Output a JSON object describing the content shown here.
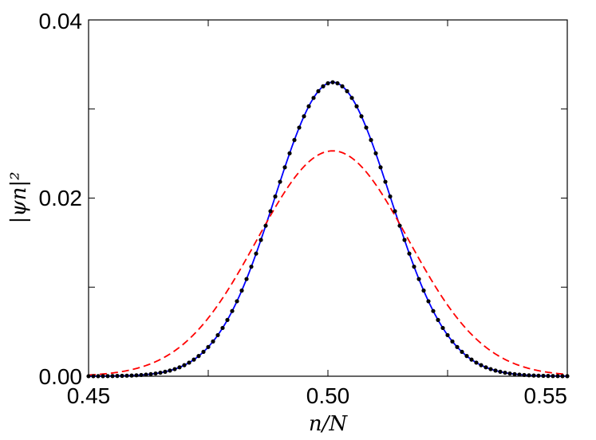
{
  "chart_data": {
    "type": "line",
    "title": "",
    "xlabel": "n/N",
    "ylabel": "|ψn|²",
    "xlim": [
      0.45,
      0.55
    ],
    "ylim": [
      0.0,
      0.04
    ],
    "x_ticks": [
      "0.45",
      "0.50",
      "0.55"
    ],
    "y_ticks": [
      "0.00",
      "0.02",
      "0.04"
    ],
    "grid": false,
    "legend": "none",
    "series": [
      {
        "style": "solid",
        "color": "#0000ff",
        "shape": "gaussian",
        "peak_x": 0.501,
        "peak_y": 0.033,
        "sigma": 0.0121
      },
      {
        "style": "dashed",
        "color": "#ff0000",
        "shape": "gaussian",
        "peak_x": 0.501,
        "peak_y": 0.0253,
        "sigma": 0.0158
      },
      {
        "style": "markers",
        "color": "#000000",
        "marker": "dot",
        "shape": "gaussian",
        "peak_x": 0.501,
        "peak_y": 0.033,
        "sigma": 0.0121,
        "x_start": 0.45,
        "x_end": 0.55,
        "x_step": 0.001
      }
    ]
  }
}
